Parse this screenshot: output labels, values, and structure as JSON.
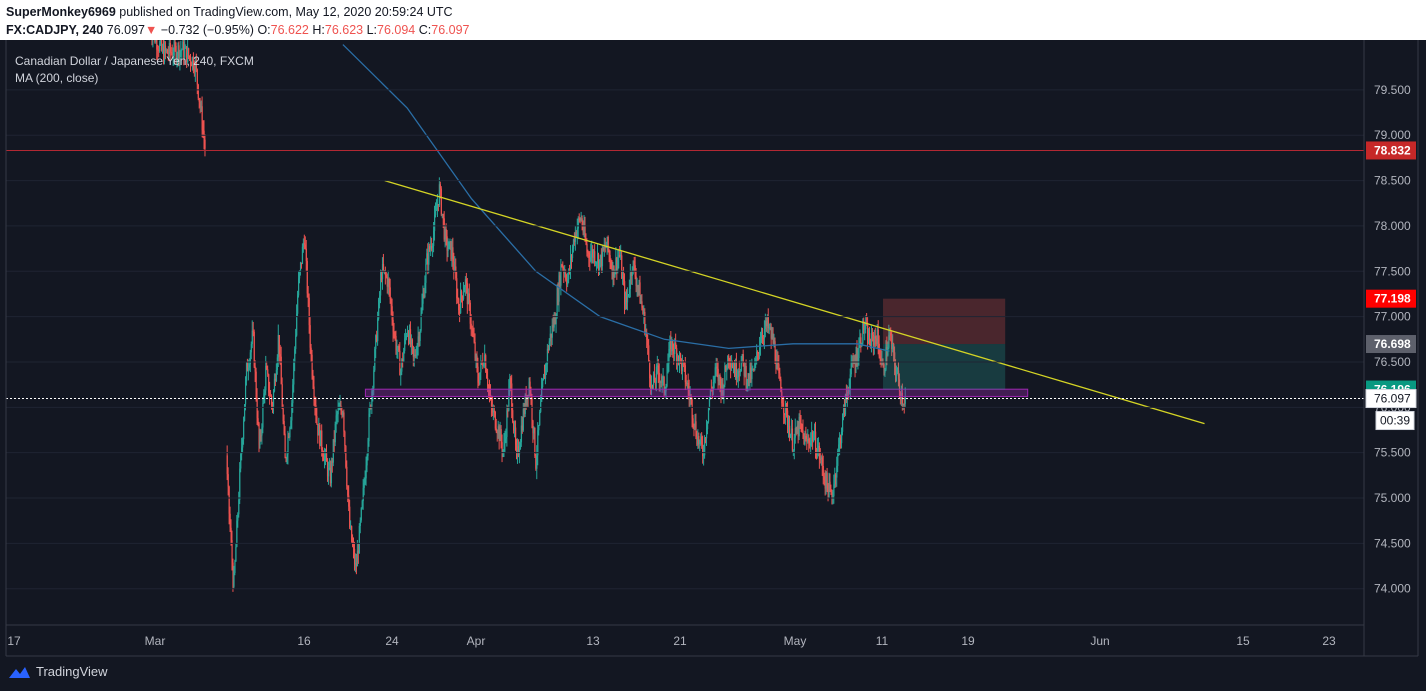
{
  "header": {
    "author": "SuperMonkey6969",
    "published": "published on TradingView.com, May 12, 2020 20:59:24 UTC",
    "symbol": "FX:CADJPY, 240",
    "last": "76.097",
    "change_arrow": "▼",
    "change": "−0.732 (−0.95%)",
    "o_label": "O:",
    "o": "76.622",
    "h_label": "H:",
    "h": "76.623",
    "l_label": "L:",
    "l": "76.094",
    "c_label": "C:",
    "c": "76.097"
  },
  "legend": {
    "title": "Canadian Dollar / Japanese Yen, 240, FXCM",
    "indicator": "MA (200, close)"
  },
  "footer": {
    "brand": "TradingView"
  },
  "colors": {
    "up": "#26a69a",
    "down": "#ef5350",
    "ma": "#2a6ea6",
    "trendline": "#d4d425",
    "support_zone": "#9c27b0",
    "resistance_line": "#b22833",
    "background": "#131722"
  },
  "chart_data": {
    "type": "candlestick",
    "symbol": "CADJPY",
    "timeframe": "240",
    "ylim": [
      73.6,
      80.05
    ],
    "y_ticks": [
      "79.500",
      "79.000",
      "78.500",
      "78.000",
      "77.500",
      "77.000",
      "76.500",
      "76.000",
      "75.500",
      "75.000",
      "74.500",
      "74.000"
    ],
    "x_ticks": [
      "17",
      "Mar",
      "16",
      "24",
      "Apr",
      "13",
      "21",
      "May",
      "11",
      "19",
      "Jun",
      "15",
      "23"
    ],
    "price_labels": [
      {
        "value": "78.832",
        "kind": "horizontal-line"
      },
      {
        "value": "77.198",
        "kind": "stop-loss"
      },
      {
        "value": "76.698",
        "kind": "entry"
      },
      {
        "value": "76.196",
        "kind": "target"
      },
      {
        "value": "76.097",
        "kind": "last-price"
      }
    ],
    "countdown": "00:39",
    "price_path": [
      [
        0,
        80.2
      ],
      [
        2,
        79.9
      ],
      [
        5,
        79.95
      ],
      [
        7,
        79.8
      ],
      [
        8,
        79.2
      ],
      [
        9,
        78.6
      ],
      [
        10,
        78.4
      ],
      [
        11,
        77.0
      ],
      [
        12,
        75.2
      ],
      [
        13,
        74.0
      ],
      [
        14,
        75.3
      ],
      [
        15,
        76.4
      ],
      [
        16,
        76.8
      ],
      [
        17,
        75.5
      ],
      [
        18,
        76.4
      ],
      [
        19,
        76.0
      ],
      [
        20,
        76.8
      ],
      [
        21,
        75.4
      ],
      [
        22,
        76.0
      ],
      [
        23,
        77.3
      ],
      [
        24,
        77.9
      ],
      [
        25,
        76.6
      ],
      [
        26,
        75.8
      ],
      [
        27,
        75.5
      ],
      [
        28,
        75.2
      ],
      [
        29,
        75.9
      ],
      [
        30,
        76.0
      ],
      [
        31,
        74.7
      ],
      [
        32,
        74.2
      ],
      [
        33,
        74.9
      ],
      [
        34,
        75.8
      ],
      [
        35,
        76.6
      ],
      [
        36,
        77.5
      ],
      [
        37,
        77.4
      ],
      [
        38,
        76.8
      ],
      [
        39,
        76.4
      ],
      [
        40,
        76.9
      ],
      [
        41,
        76.5
      ],
      [
        42,
        76.9
      ],
      [
        43,
        77.6
      ],
      [
        44,
        77.9
      ],
      [
        45,
        78.4
      ],
      [
        46,
        77.8
      ],
      [
        47,
        77.7
      ],
      [
        48,
        77.1
      ],
      [
        49,
        77.4
      ],
      [
        50,
        76.9
      ],
      [
        51,
        76.3
      ],
      [
        52,
        76.6
      ],
      [
        53,
        76.0
      ],
      [
        54,
        75.8
      ],
      [
        55,
        75.5
      ],
      [
        56,
        76.3
      ],
      [
        57,
        75.4
      ],
      [
        58,
        75.9
      ],
      [
        59,
        76.3
      ],
      [
        60,
        75.4
      ],
      [
        61,
        76.2
      ],
      [
        62,
        76.7
      ],
      [
        63,
        77.0
      ],
      [
        64,
        77.6
      ],
      [
        65,
        77.4
      ],
      [
        66,
        77.9
      ],
      [
        67,
        78.1
      ],
      [
        68,
        77.7
      ],
      [
        69,
        77.7
      ],
      [
        70,
        77.6
      ],
      [
        71,
        77.8
      ],
      [
        72,
        77.5
      ],
      [
        73,
        77.7
      ],
      [
        74,
        77.1
      ],
      [
        75,
        77.6
      ],
      [
        76,
        77.3
      ],
      [
        77,
        76.9
      ],
      [
        78,
        76.2
      ],
      [
        79,
        76.4
      ],
      [
        80,
        76.2
      ],
      [
        81,
        76.7
      ],
      [
        82,
        76.6
      ],
      [
        83,
        76.4
      ],
      [
        84,
        76.1
      ],
      [
        85,
        75.7
      ],
      [
        86,
        75.5
      ],
      [
        87,
        76.1
      ],
      [
        88,
        76.4
      ],
      [
        89,
        76.2
      ],
      [
        90,
        76.6
      ],
      [
        91,
        76.4
      ],
      [
        92,
        76.5
      ],
      [
        93,
        76.3
      ],
      [
        94,
        76.4
      ],
      [
        95,
        76.8
      ],
      [
        96,
        76.9
      ],
      [
        97,
        76.7
      ],
      [
        98,
        76.2
      ],
      [
        99,
        75.9
      ],
      [
        100,
        75.6
      ],
      [
        101,
        75.8
      ],
      [
        102,
        75.6
      ],
      [
        103,
        75.7
      ],
      [
        104,
        75.5
      ],
      [
        105,
        75.2
      ],
      [
        106,
        75.0
      ],
      [
        107,
        75.5
      ],
      [
        108,
        76.0
      ],
      [
        109,
        76.4
      ],
      [
        110,
        76.6
      ],
      [
        111,
        76.9
      ],
      [
        112,
        76.7
      ],
      [
        113,
        76.8
      ],
      [
        114,
        76.4
      ],
      [
        115,
        76.8
      ],
      [
        116,
        76.4
      ],
      [
        117,
        76.1
      ]
    ],
    "ma200": {
      "name": "MA (200, close)",
      "points": [
        [
          30,
          80.0
        ],
        [
          40,
          79.3
        ],
        [
          50,
          78.3
        ],
        [
          60,
          77.5
        ],
        [
          70,
          77.0
        ],
        [
          80,
          76.75
        ],
        [
          90,
          76.65
        ],
        [
          100,
          76.7
        ],
        [
          110,
          76.7
        ],
        [
          115,
          76.62
        ]
      ]
    },
    "trendline": {
      "from": {
        "date": "Mar 24",
        "value": 78.5
      },
      "to": {
        "date": "Jun 13",
        "value": 75.82
      }
    },
    "horizontal_line": 78.832,
    "support_zone": [
      76.12,
      76.2
    ],
    "position": {
      "type": "short",
      "entry": 76.698,
      "stop": 77.198,
      "target": 76.196
    }
  }
}
